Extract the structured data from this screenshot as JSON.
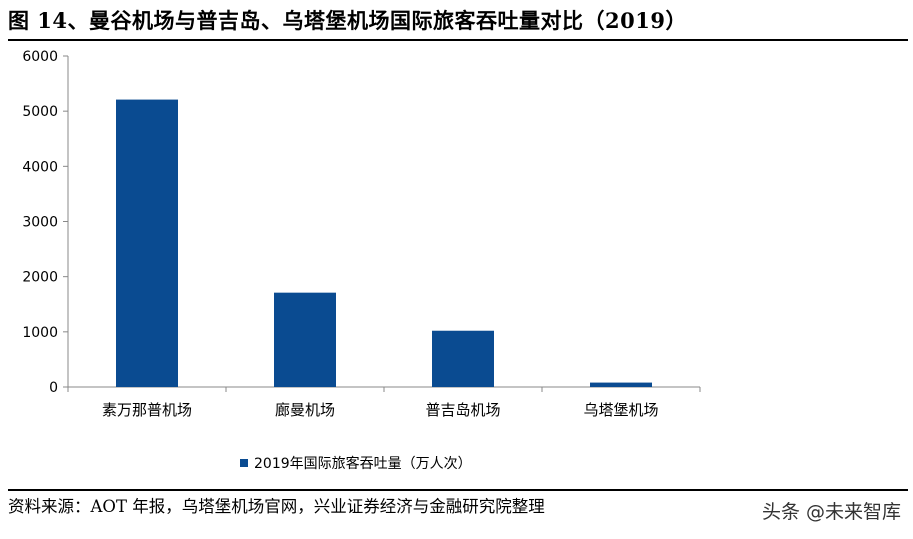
{
  "title": "图 14、曼谷机场与普吉岛、乌塔堡机场国际旅客吞吐量对比（2019）",
  "source": "资料来源：AOT 年报，乌塔堡机场官网，兴业证券经济与金融研究院整理",
  "watermark": "头条 @未来智库",
  "colors": {
    "bar": "#0a4b91",
    "axis": "#888888"
  },
  "chart_data": {
    "type": "bar",
    "categories": [
      "素万那普机场",
      "廊曼机场",
      "普吉岛机场",
      "乌塔堡机场"
    ],
    "series": [
      {
        "name": "2019年国际旅客吞吐量（万人次）",
        "values": [
          5210,
          1710,
          1020,
          80
        ]
      }
    ],
    "ylim": [
      0,
      6000
    ],
    "yticks": [
      0,
      1000,
      2000,
      3000,
      4000,
      5000,
      6000
    ],
    "xlabel": "",
    "ylabel": "",
    "grid": false,
    "legend": "bottom"
  }
}
